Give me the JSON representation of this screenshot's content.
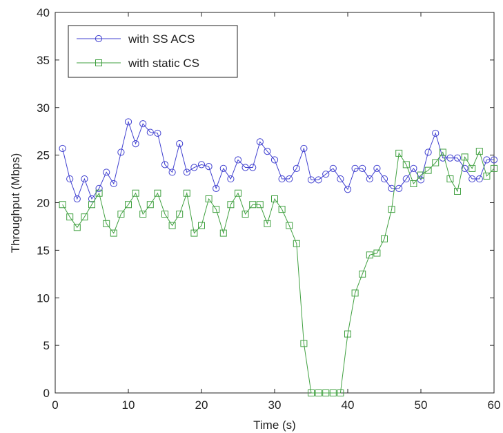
{
  "chart_data": {
    "type": "line",
    "title": "",
    "xlabel": "Time (s)",
    "ylabel": "Throughput (Mbps)",
    "xlim": [
      0,
      60
    ],
    "ylim": [
      0,
      40
    ],
    "xticks": [
      "0",
      "10",
      "20",
      "30",
      "40",
      "50",
      "60"
    ],
    "yticks": [
      "0",
      "5",
      "10",
      "15",
      "20",
      "25",
      "30",
      "35",
      "40"
    ],
    "grid": false,
    "legend": "top-left",
    "series": [
      {
        "name": "with SS ACS",
        "color": "#4040d0",
        "marker": "circle",
        "x": [
          1,
          2,
          3,
          4,
          5,
          6,
          7,
          8,
          9,
          10,
          11,
          12,
          13,
          14,
          15,
          16,
          17,
          18,
          19,
          20,
          21,
          22,
          23,
          24,
          25,
          26,
          27,
          28,
          29,
          30,
          31,
          32,
          33,
          34,
          35,
          36,
          37,
          38,
          39,
          40,
          41,
          42,
          43,
          44,
          45,
          46,
          47,
          48,
          49,
          50,
          51,
          52,
          53,
          54,
          55,
          56,
          57,
          58,
          59,
          60
        ],
        "y": [
          25.7,
          22.5,
          20.4,
          22.5,
          20.4,
          21.5,
          23.2,
          22.0,
          25.3,
          28.5,
          26.2,
          28.3,
          27.4,
          27.3,
          24.0,
          23.2,
          26.2,
          23.2,
          23.7,
          24.0,
          23.8,
          21.5,
          23.6,
          22.5,
          24.5,
          23.7,
          23.7,
          26.4,
          25.4,
          24.5,
          22.5,
          22.5,
          23.6,
          25.7,
          22.4,
          22.4,
          23.0,
          23.6,
          22.5,
          21.4,
          23.6,
          23.6,
          22.5,
          23.6,
          22.5,
          21.5,
          21.5,
          22.5,
          23.6,
          22.4,
          25.3,
          27.3,
          24.7,
          24.7,
          24.7,
          23.6,
          22.5,
          22.5,
          24.5,
          24.5
        ]
      },
      {
        "name": "with static CS",
        "color": "#40a040",
        "marker": "square",
        "x": [
          1,
          2,
          3,
          4,
          5,
          6,
          7,
          8,
          9,
          10,
          11,
          12,
          13,
          14,
          15,
          16,
          17,
          18,
          19,
          20,
          21,
          22,
          23,
          24,
          25,
          26,
          27,
          28,
          29,
          30,
          31,
          32,
          33,
          34,
          35,
          36,
          37,
          38,
          39,
          40,
          41,
          42,
          43,
          44,
          45,
          46,
          47,
          48,
          49,
          50,
          51,
          52,
          53,
          54,
          55,
          56,
          57,
          58,
          59,
          60
        ],
        "y": [
          19.8,
          18.5,
          17.4,
          18.5,
          19.8,
          21.0,
          17.8,
          16.8,
          18.8,
          19.8,
          21.0,
          18.8,
          19.8,
          21.0,
          18.8,
          17.6,
          18.8,
          21.0,
          16.8,
          17.6,
          20.4,
          19.3,
          16.8,
          19.8,
          21.0,
          18.8,
          19.8,
          19.8,
          17.8,
          20.4,
          19.3,
          17.6,
          15.7,
          5.2,
          0,
          0,
          0,
          0,
          0,
          6.2,
          10.5,
          12.5,
          14.5,
          14.7,
          16.2,
          19.3,
          25.2,
          24.0,
          22.0,
          22.9,
          23.4,
          24.2,
          25.3,
          22.5,
          21.2,
          24.8,
          23.6,
          25.4,
          22.8,
          23.6
        ]
      }
    ]
  }
}
